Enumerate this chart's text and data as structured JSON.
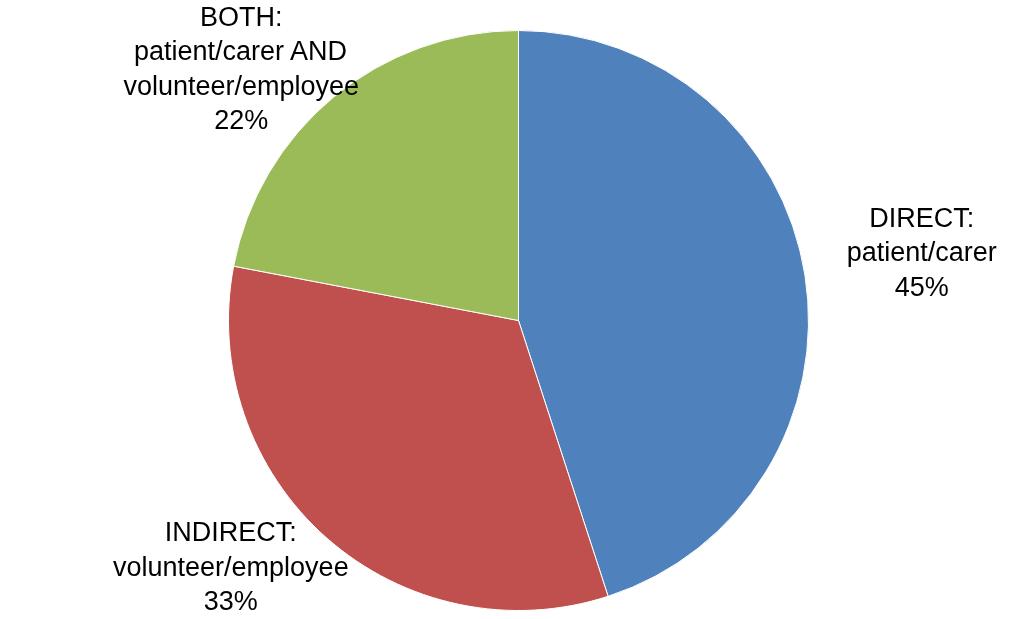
{
  "chart_data": {
    "type": "pie",
    "categories": [
      "DIRECT:\npatient/carer",
      "INDIRECT:\nvolunteer/employee",
      "BOTH:\npatient/carer AND\nvolunteer/employee"
    ],
    "values": [
      45,
      33,
      22
    ],
    "value_labels": [
      "45%",
      "33%",
      "22%"
    ],
    "colors": [
      "#4f81bd",
      "#c0504d",
      "#9bbb59"
    ],
    "legend": false
  }
}
